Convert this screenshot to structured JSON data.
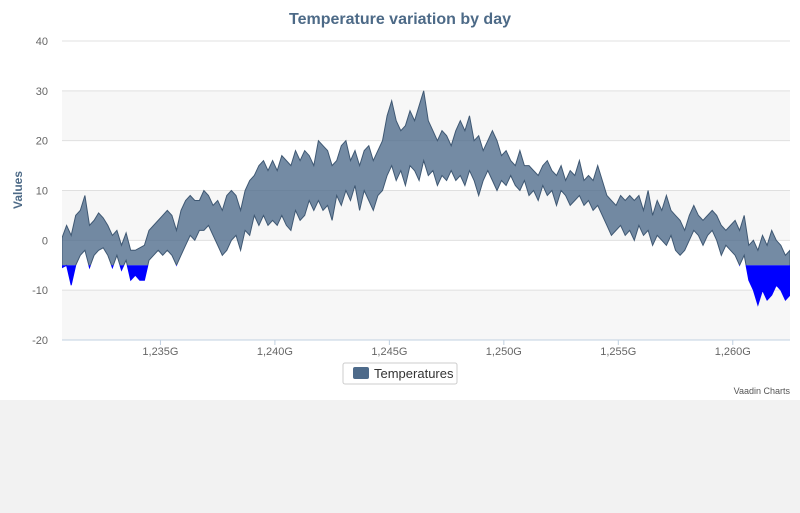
{
  "chart_data": {
    "type": "area",
    "title": "Temperature variation by day",
    "ylabel": "Values",
    "xlabel": "",
    "xlim": [
      1230.7,
      1262.5
    ],
    "ylim": [
      -20,
      40
    ],
    "y_ticks": [
      "-20",
      "-10",
      "0",
      "10",
      "20",
      "30",
      "40"
    ],
    "x_ticks": [
      {
        "value": 1235,
        "label": "1,235G"
      },
      {
        "value": 1240,
        "label": "1,240G"
      },
      {
        "value": 1245,
        "label": "1,245G"
      },
      {
        "value": 1250,
        "label": "1,250G"
      },
      {
        "value": 1255,
        "label": "1,255G"
      },
      {
        "value": 1260,
        "label": "1,260G"
      }
    ],
    "legend": {
      "position": "bottom-center",
      "entries": [
        "Temperatures"
      ]
    },
    "threshold": -5,
    "grid": true,
    "series": [
      {
        "name": "Temperatures",
        "color": "#4d6a8a",
        "negative_color": "#0000ff",
        "points": [
          [
            1230.7,
            -5.5,
            0.5
          ],
          [
            1230.9,
            -5,
            3
          ],
          [
            1231.1,
            -9,
            1
          ],
          [
            1231.3,
            -5,
            5
          ],
          [
            1231.5,
            -3,
            6
          ],
          [
            1231.7,
            -2,
            9
          ],
          [
            1231.9,
            -5.5,
            3
          ],
          [
            1232.1,
            -3,
            4
          ],
          [
            1232.3,
            -2,
            5.5
          ],
          [
            1232.5,
            -1.5,
            4.5
          ],
          [
            1232.7,
            -3,
            3
          ],
          [
            1232.9,
            -5.5,
            1
          ],
          [
            1233.1,
            -3,
            2
          ],
          [
            1233.3,
            -6,
            -1
          ],
          [
            1233.5,
            -4,
            1.5
          ],
          [
            1233.7,
            -8,
            -2
          ],
          [
            1233.9,
            -7,
            -2
          ],
          [
            1234.1,
            -8,
            -1.5
          ],
          [
            1234.3,
            -8,
            -1
          ],
          [
            1234.5,
            -4,
            2
          ],
          [
            1234.7,
            -3,
            3
          ],
          [
            1234.9,
            -2,
            4
          ],
          [
            1235.1,
            -3,
            5
          ],
          [
            1235.3,
            -2,
            6
          ],
          [
            1235.5,
            -3,
            5
          ],
          [
            1235.7,
            -5,
            2
          ],
          [
            1235.9,
            -3,
            6
          ],
          [
            1236.1,
            -1,
            8
          ],
          [
            1236.3,
            1,
            9
          ],
          [
            1236.5,
            0,
            8
          ],
          [
            1236.7,
            2,
            8
          ],
          [
            1236.9,
            2,
            10
          ],
          [
            1237.1,
            3,
            9
          ],
          [
            1237.3,
            1,
            7
          ],
          [
            1237.5,
            -1,
            8
          ],
          [
            1237.7,
            -3,
            6
          ],
          [
            1237.9,
            -2,
            9
          ],
          [
            1238.1,
            0,
            10
          ],
          [
            1238.3,
            1,
            9
          ],
          [
            1238.5,
            -2,
            6
          ],
          [
            1238.7,
            2,
            10
          ],
          [
            1238.9,
            1,
            12
          ],
          [
            1239.1,
            5,
            13
          ],
          [
            1239.3,
            3,
            15
          ],
          [
            1239.5,
            5,
            16
          ],
          [
            1239.7,
            3,
            14
          ],
          [
            1239.9,
            4,
            16
          ],
          [
            1240.1,
            3,
            14
          ],
          [
            1240.3,
            5,
            17
          ],
          [
            1240.5,
            3,
            16
          ],
          [
            1240.7,
            2,
            15
          ],
          [
            1240.9,
            6,
            18
          ],
          [
            1241.1,
            4,
            16
          ],
          [
            1241.3,
            5,
            18
          ],
          [
            1241.5,
            8,
            17
          ],
          [
            1241.7,
            6,
            15
          ],
          [
            1241.9,
            8,
            20
          ],
          [
            1242.1,
            6,
            19
          ],
          [
            1242.3,
            7,
            18
          ],
          [
            1242.5,
            4,
            15
          ],
          [
            1242.7,
            9,
            16
          ],
          [
            1242.9,
            7,
            19
          ],
          [
            1243.1,
            10,
            20
          ],
          [
            1243.3,
            8,
            16
          ],
          [
            1243.5,
            11,
            18
          ],
          [
            1243.7,
            6,
            15
          ],
          [
            1243.9,
            10,
            18
          ],
          [
            1244.1,
            8,
            19
          ],
          [
            1244.3,
            6,
            16
          ],
          [
            1244.5,
            9,
            18
          ],
          [
            1244.7,
            10,
            20
          ],
          [
            1244.9,
            13,
            25
          ],
          [
            1245.1,
            15,
            28
          ],
          [
            1245.3,
            12,
            24
          ],
          [
            1245.5,
            14,
            22
          ],
          [
            1245.7,
            11,
            23
          ],
          [
            1245.9,
            15,
            26
          ],
          [
            1246.1,
            14,
            24
          ],
          [
            1246.3,
            12,
            27
          ],
          [
            1246.5,
            16,
            30
          ],
          [
            1246.7,
            13,
            24
          ],
          [
            1246.9,
            14,
            22
          ],
          [
            1247.1,
            11,
            20
          ],
          [
            1247.3,
            13,
            22
          ],
          [
            1247.5,
            12,
            21
          ],
          [
            1247.7,
            14,
            19
          ],
          [
            1247.9,
            12,
            22
          ],
          [
            1248.1,
            13,
            24
          ],
          [
            1248.3,
            11,
            22
          ],
          [
            1248.5,
            14,
            25
          ],
          [
            1248.7,
            12,
            20
          ],
          [
            1248.9,
            9,
            21
          ],
          [
            1249.1,
            12,
            18
          ],
          [
            1249.3,
            14,
            20
          ],
          [
            1249.5,
            12,
            22
          ],
          [
            1249.7,
            10,
            20
          ],
          [
            1249.9,
            12,
            17
          ],
          [
            1250.1,
            11,
            18
          ],
          [
            1250.3,
            13,
            16
          ],
          [
            1250.5,
            11,
            15
          ],
          [
            1250.7,
            10,
            18
          ],
          [
            1250.9,
            12,
            15
          ],
          [
            1251.1,
            9,
            15
          ],
          [
            1251.3,
            10,
            14
          ],
          [
            1251.5,
            8,
            13
          ],
          [
            1251.7,
            11,
            15
          ],
          [
            1251.9,
            9,
            16
          ],
          [
            1252.1,
            10,
            14
          ],
          [
            1252.3,
            7,
            13
          ],
          [
            1252.5,
            10,
            15
          ],
          [
            1252.7,
            9,
            12
          ],
          [
            1252.9,
            7,
            14
          ],
          [
            1253.1,
            8,
            13
          ],
          [
            1253.3,
            9,
            16
          ],
          [
            1253.5,
            7,
            12
          ],
          [
            1253.7,
            8,
            13
          ],
          [
            1253.9,
            6,
            12
          ],
          [
            1254.1,
            7,
            15
          ],
          [
            1254.3,
            5,
            12
          ],
          [
            1254.5,
            3,
            9
          ],
          [
            1254.7,
            1,
            8
          ],
          [
            1254.9,
            2,
            7
          ],
          [
            1255.1,
            3,
            9
          ],
          [
            1255.3,
            1,
            8
          ],
          [
            1255.5,
            2,
            9
          ],
          [
            1255.7,
            0,
            8
          ],
          [
            1255.9,
            3,
            9
          ],
          [
            1256.1,
            1,
            6
          ],
          [
            1256.3,
            2,
            10
          ],
          [
            1256.5,
            -1,
            5
          ],
          [
            1256.7,
            1,
            8
          ],
          [
            1256.9,
            0,
            6
          ],
          [
            1257.1,
            -1,
            9
          ],
          [
            1257.3,
            1,
            6
          ],
          [
            1257.5,
            -2,
            5
          ],
          [
            1257.7,
            -3,
            4
          ],
          [
            1257.9,
            -2,
            2
          ],
          [
            1258.1,
            0,
            5
          ],
          [
            1258.3,
            2,
            7
          ],
          [
            1258.5,
            1,
            5
          ],
          [
            1258.7,
            -1,
            4
          ],
          [
            1258.9,
            1,
            5
          ],
          [
            1259.1,
            2,
            6
          ],
          [
            1259.3,
            0,
            5
          ],
          [
            1259.5,
            -3,
            3
          ],
          [
            1259.7,
            -1,
            2
          ],
          [
            1259.9,
            -2,
            3
          ],
          [
            1260.1,
            -3,
            4
          ],
          [
            1260.3,
            -5,
            2
          ],
          [
            1260.5,
            -3,
            5
          ],
          [
            1260.7,
            -8,
            -1
          ],
          [
            1260.9,
            -10,
            0
          ],
          [
            1261.1,
            -13,
            -2
          ],
          [
            1261.3,
            -10,
            1
          ],
          [
            1261.5,
            -12,
            -1
          ],
          [
            1261.7,
            -11,
            2
          ],
          [
            1261.9,
            -9,
            0
          ],
          [
            1262.1,
            -10,
            -1
          ],
          [
            1262.3,
            -12,
            -3
          ],
          [
            1262.5,
            -11,
            -2
          ]
        ]
      }
    ]
  },
  "credits": "Vaadin Charts"
}
